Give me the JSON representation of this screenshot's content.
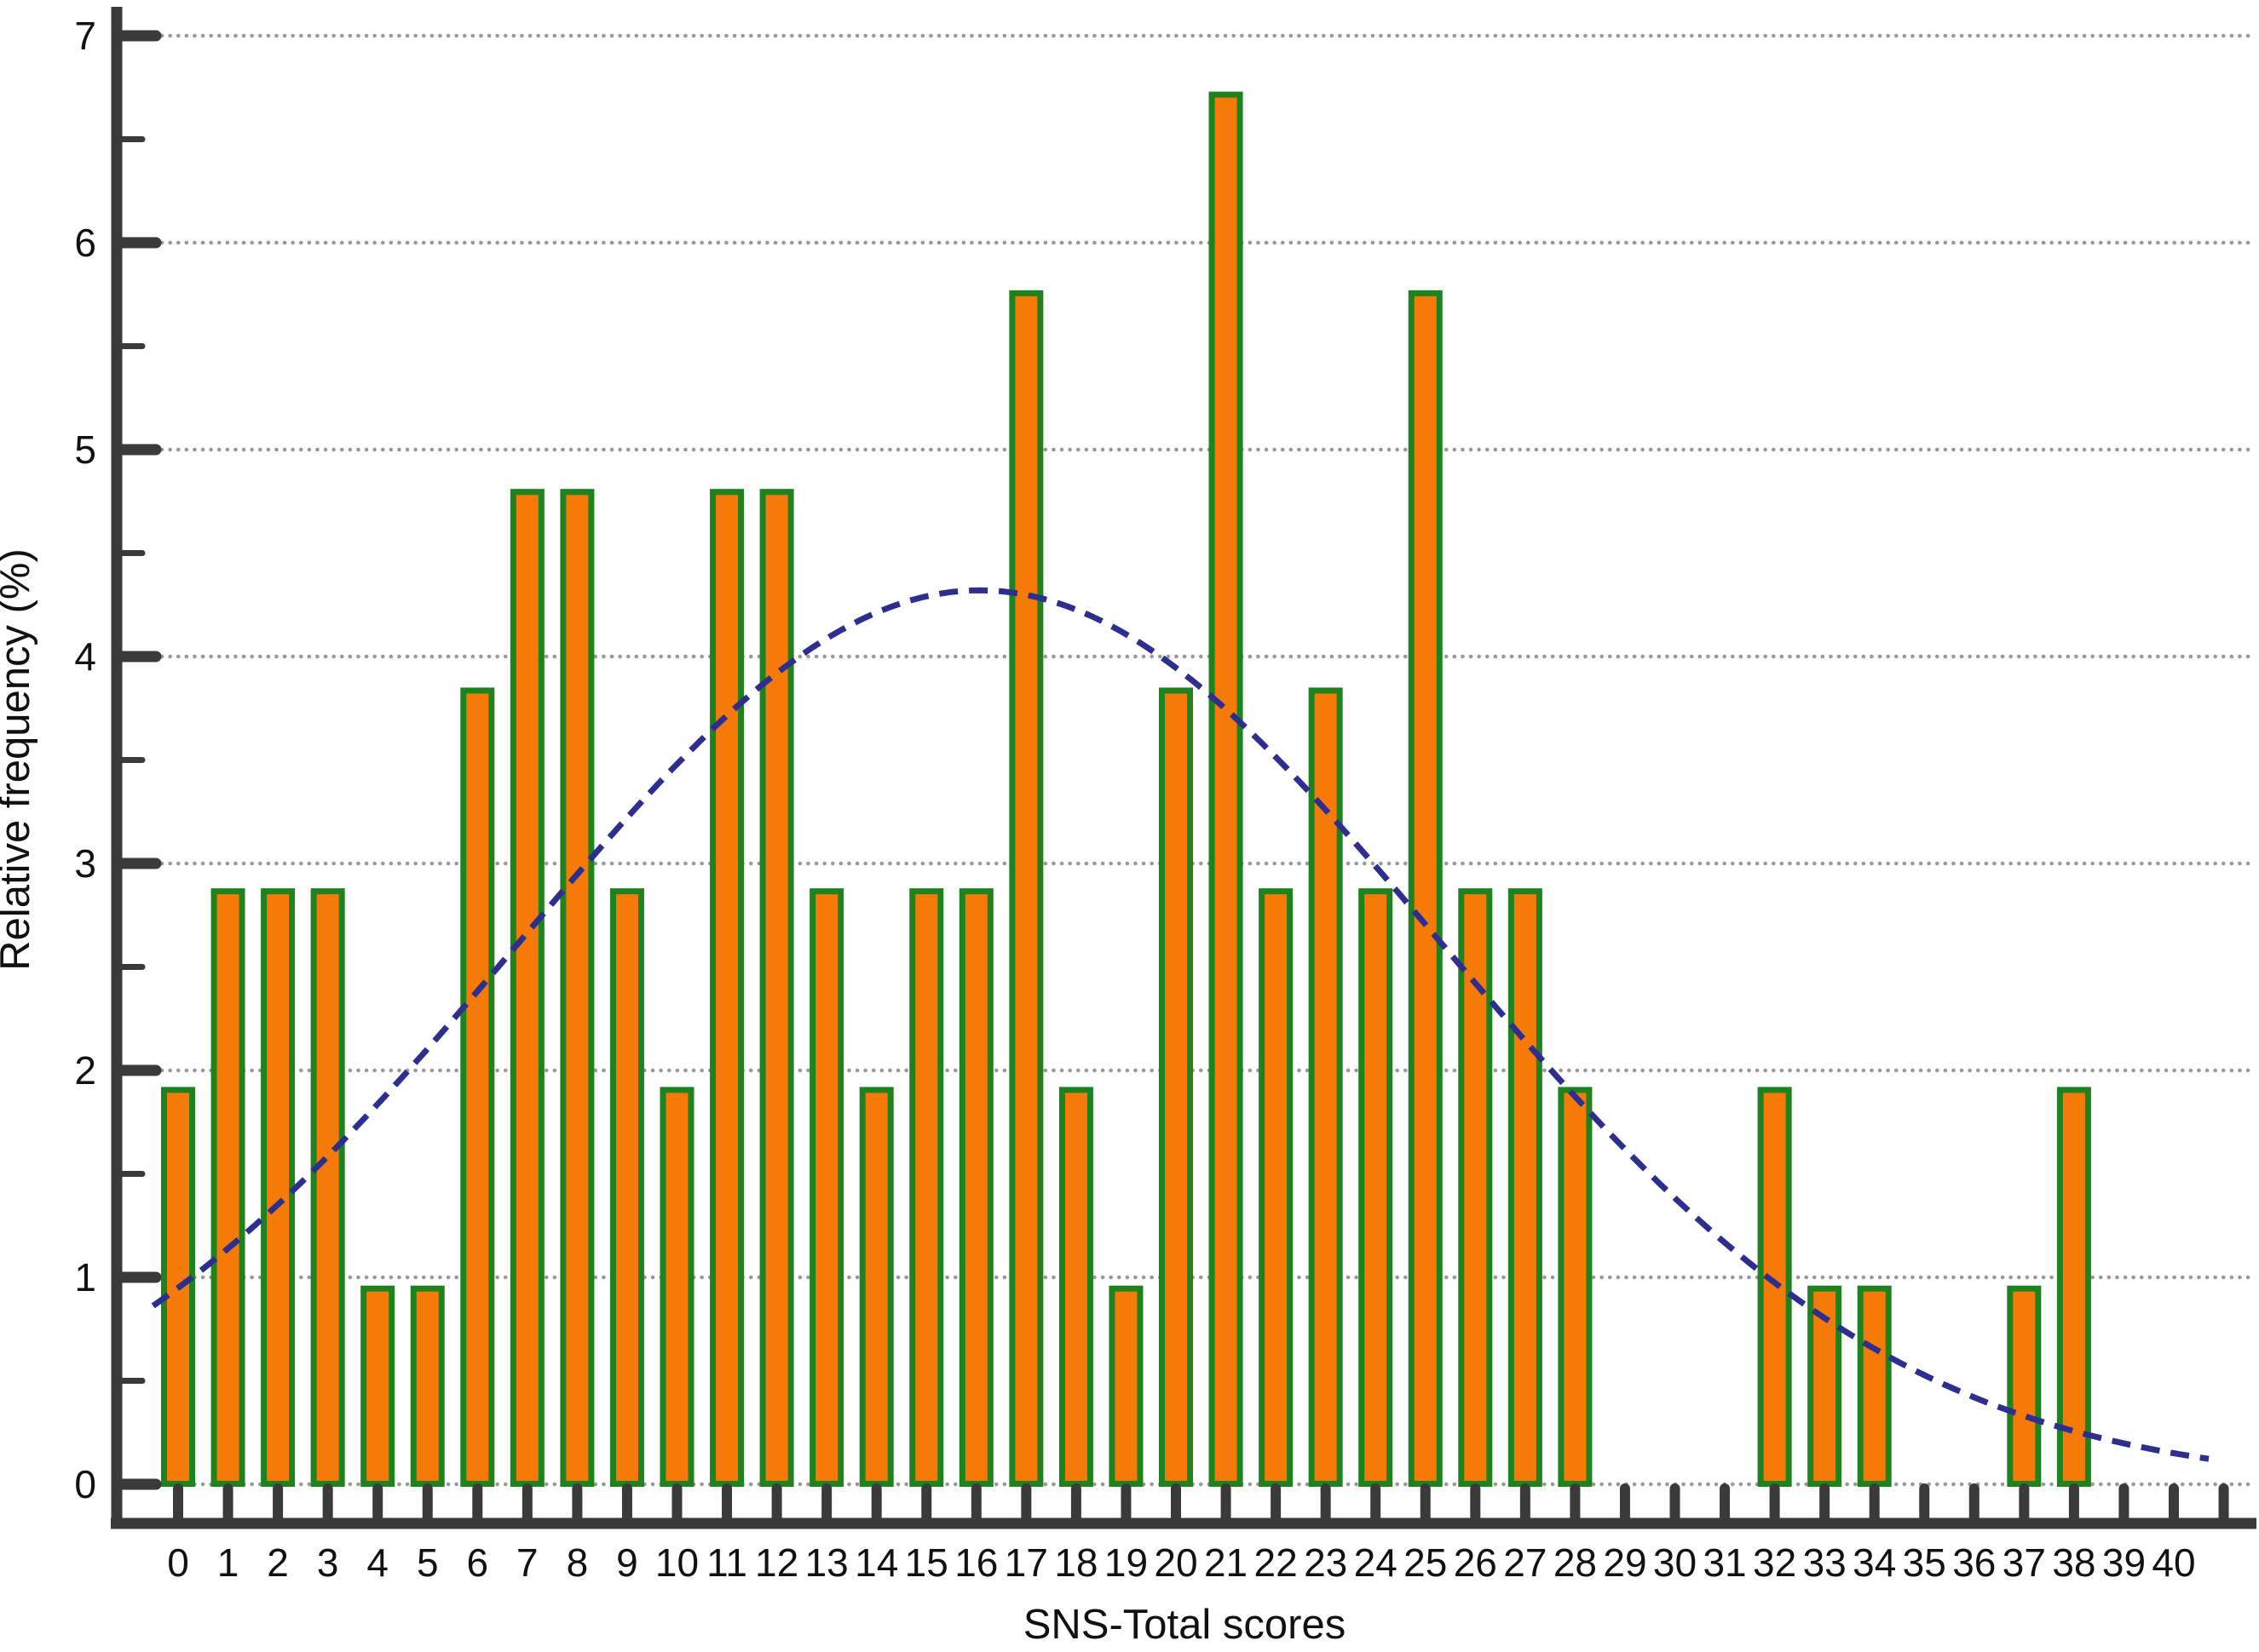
{
  "chart_data": {
    "type": "bar",
    "title": "",
    "xlabel": "SNS-Total scores",
    "ylabel": "Relative frequency (%)",
    "categories": [
      0,
      1,
      2,
      3,
      4,
      5,
      6,
      7,
      8,
      9,
      10,
      11,
      12,
      13,
      14,
      15,
      16,
      17,
      18,
      19,
      20,
      21,
      22,
      23,
      24,
      25,
      26,
      27,
      28,
      29,
      30,
      31,
      32,
      33,
      34,
      35,
      36,
      37,
      38,
      39,
      40
    ],
    "values": [
      1.92,
      2.88,
      2.88,
      2.88,
      0.96,
      0.96,
      3.85,
      4.81,
      4.81,
      2.88,
      1.92,
      4.81,
      4.81,
      2.88,
      1.92,
      2.88,
      2.88,
      5.77,
      1.92,
      0.96,
      3.85,
      6.73,
      2.88,
      3.85,
      2.88,
      5.77,
      2.88,
      2.88,
      1.92,
      0,
      0,
      0,
      1.92,
      0.96,
      0.96,
      0,
      0,
      0.96,
      1.92,
      0,
      0
    ],
    "ylim": [
      0,
      7
    ],
    "yticks": [
      0,
      1,
      2,
      3,
      4,
      5,
      6,
      7
    ],
    "y_minor_step": 0.5,
    "grid": "horizontal-dotted",
    "legend_position": "none",
    "overlay_curve": {
      "type": "normal-density",
      "mean": 16.07,
      "sd": 9.23,
      "peak": 4.32,
      "line_style": "dashed",
      "color": "#2D2E8E"
    },
    "colors": {
      "bar_fill": "#F67A08",
      "bar_border": "#1E821E",
      "curve": "#2D2E8E",
      "gridline": "#999999",
      "axis": "#3A3A3A",
      "text": "#111111"
    }
  }
}
